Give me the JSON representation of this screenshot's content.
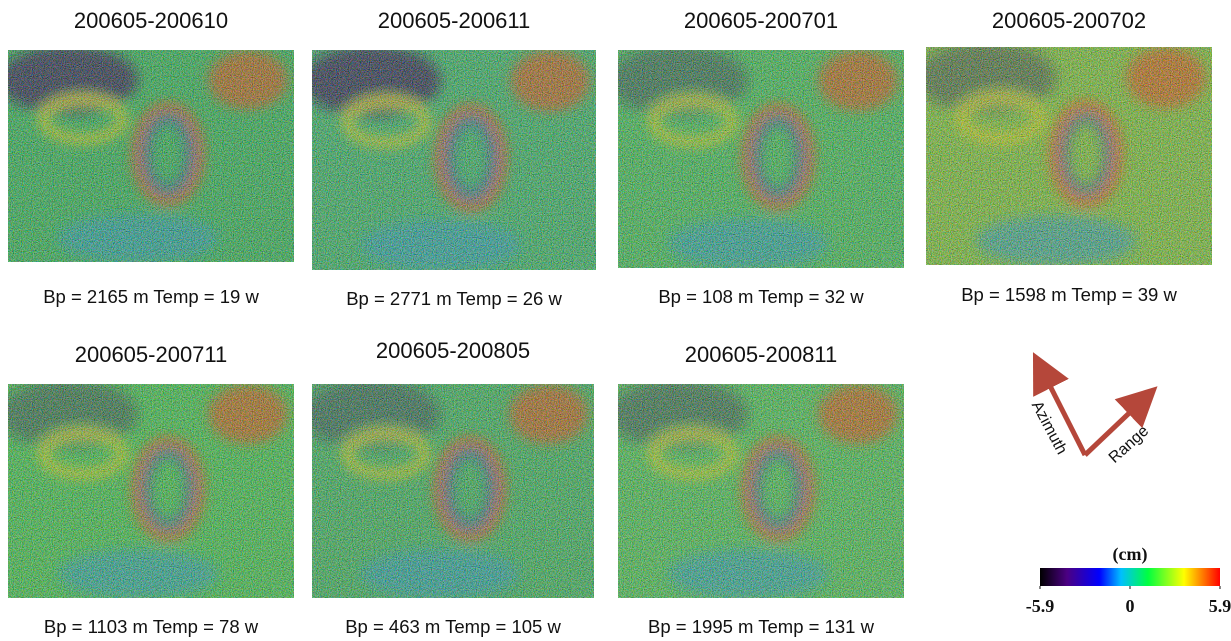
{
  "panels": [
    {
      "title": "200605-200610",
      "caption": "Bp = 2165 m Temp = 19 w"
    },
    {
      "title": "200605-200611",
      "caption": "Bp = 2771 m Temp = 26 w"
    },
    {
      "title": "200605-200701",
      "caption": "Bp = 108 m Temp = 32 w"
    },
    {
      "title": "200605-200702",
      "caption": "Bp = 1598 m Temp = 39 w"
    },
    {
      "title": "200605-200711",
      "caption": "Bp = 1103 m Temp = 78 w"
    },
    {
      "title": "200605-200805",
      "caption": "Bp = 463 m Temp = 105 w"
    },
    {
      "title": "200605-200811",
      "caption": "Bp = 1995 m Temp = 131 w"
    }
  ],
  "orientation": {
    "azimuth": "Azimuth",
    "range": "Range"
  },
  "colorbar": {
    "unit": "(cm)",
    "min": -5.9,
    "max": 5.9,
    "ticks": [
      -5.9,
      0,
      5.9
    ]
  }
}
